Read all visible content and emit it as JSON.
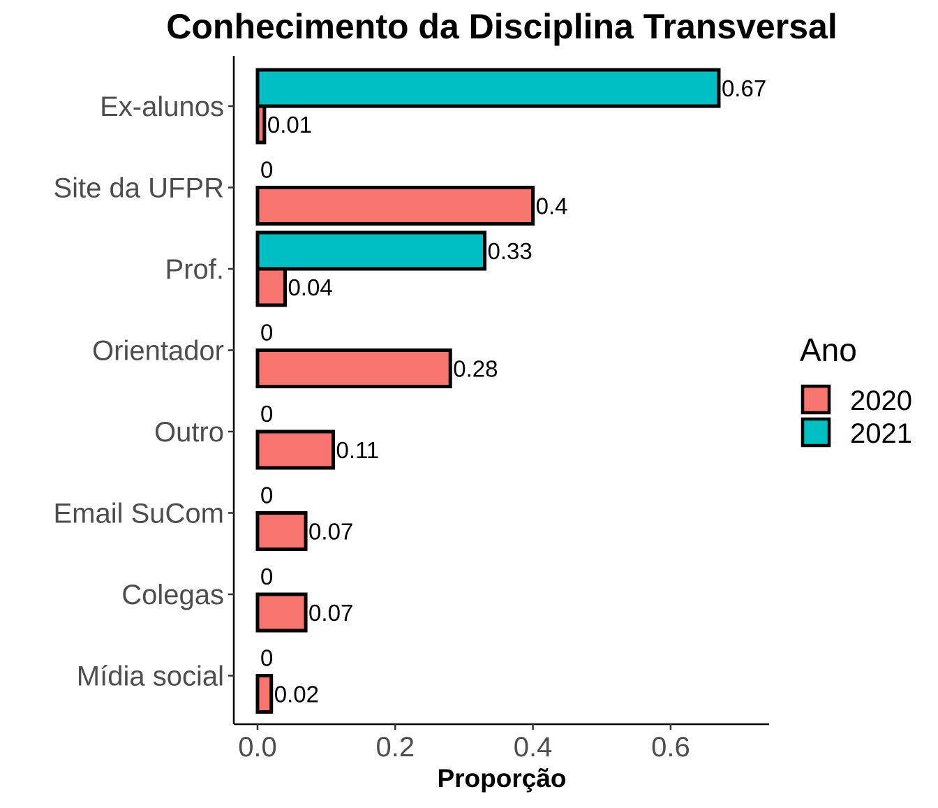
{
  "chart_data": {
    "type": "bar",
    "orientation": "horizontal",
    "title": "Conhecimento da Disciplina Transversal",
    "xlabel": "Proporção",
    "ylabel": "",
    "xlim": [
      0,
      0.7
    ],
    "x_ticks": [
      "0.0",
      "0.2",
      "0.4",
      "0.6"
    ],
    "grid": false,
    "categories": [
      "Ex-alunos",
      "Site da UFPR",
      "Prof.",
      "Orientador",
      "Outro",
      "Email SuCom",
      "Colegas",
      "Mídia social"
    ],
    "series": [
      {
        "name": "2020",
        "color": "#F8766D",
        "values": [
          0.01,
          0.4,
          0.04,
          0.28,
          0.11,
          0.07,
          0.07,
          0.02
        ],
        "labels": [
          "0.01",
          "0.4",
          "0.04",
          "0.28",
          "0.11",
          "0.07",
          "0.07",
          "0.02"
        ]
      },
      {
        "name": "2021",
        "color": "#00BFC4",
        "values": [
          0.67,
          0,
          0.33,
          0,
          0,
          0,
          0,
          0
        ],
        "labels": [
          "0.67",
          "0",
          "0.33",
          "0",
          "0",
          "0",
          "0",
          "0"
        ]
      }
    ],
    "legend": {
      "title": "Ano",
      "position": "right",
      "entries": [
        "2020",
        "2021"
      ]
    }
  }
}
